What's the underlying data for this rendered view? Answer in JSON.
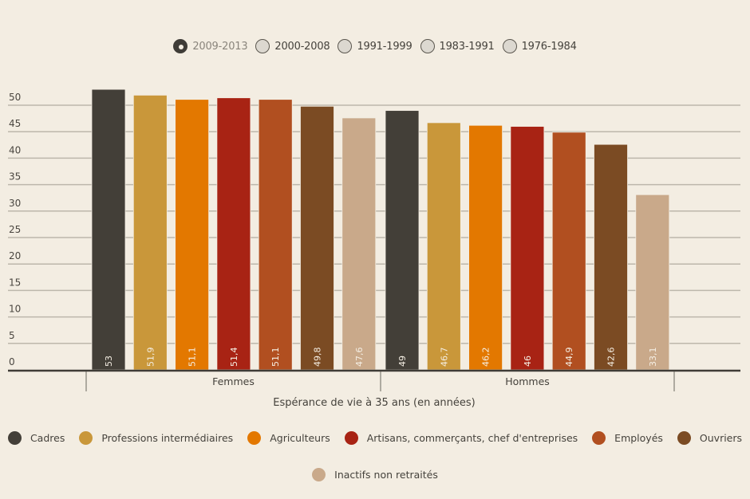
{
  "periods": [
    {
      "label": "2009-2013",
      "selected": true
    },
    {
      "label": "2000-2008",
      "selected": false
    },
    {
      "label": "1991-1999",
      "selected": false
    },
    {
      "label": "1983-1991",
      "selected": false
    },
    {
      "label": "1976-1984",
      "selected": false
    }
  ],
  "chart_data": {
    "type": "bar",
    "title": "",
    "xlabel": "Espérance de vie à 35 ans (en années)",
    "ylabel": "",
    "ylim": [
      0,
      50
    ],
    "yticks": [
      0,
      5,
      10,
      15,
      20,
      25,
      30,
      35,
      40,
      45,
      50
    ],
    "grid": true,
    "legend_position": "bottom",
    "categories": [
      "Femmes",
      "Hommes"
    ],
    "series": [
      {
        "name": "Cadres",
        "color": "#433f38",
        "values": [
          53,
          49
        ],
        "labels": [
          "53",
          "49"
        ]
      },
      {
        "name": "Professions intermédiaires",
        "color": "#c9973a",
        "values": [
          51.9,
          46.7
        ],
        "labels": [
          "51,9",
          "46,7"
        ]
      },
      {
        "name": "Agriculteurs",
        "color": "#e37800",
        "values": [
          51.1,
          46.2
        ],
        "labels": [
          "51,1",
          "46,2"
        ]
      },
      {
        "name": "Artisans, commerçants, chef d'entreprises",
        "color": "#a82314",
        "values": [
          51.4,
          46
        ],
        "labels": [
          "51,4",
          "46"
        ]
      },
      {
        "name": "Employés",
        "color": "#b14f20",
        "values": [
          51.1,
          44.9
        ],
        "labels": [
          "51,1",
          "44,9"
        ]
      },
      {
        "name": "Ouvriers",
        "color": "#7b4b23",
        "values": [
          49.8,
          42.6
        ],
        "labels": [
          "49,8",
          "42,6"
        ]
      },
      {
        "name": "Inactifs non retraités",
        "color": "#c9a98a",
        "values": [
          47.6,
          33.1
        ],
        "labels": [
          "47,6",
          "33,1"
        ]
      }
    ]
  }
}
